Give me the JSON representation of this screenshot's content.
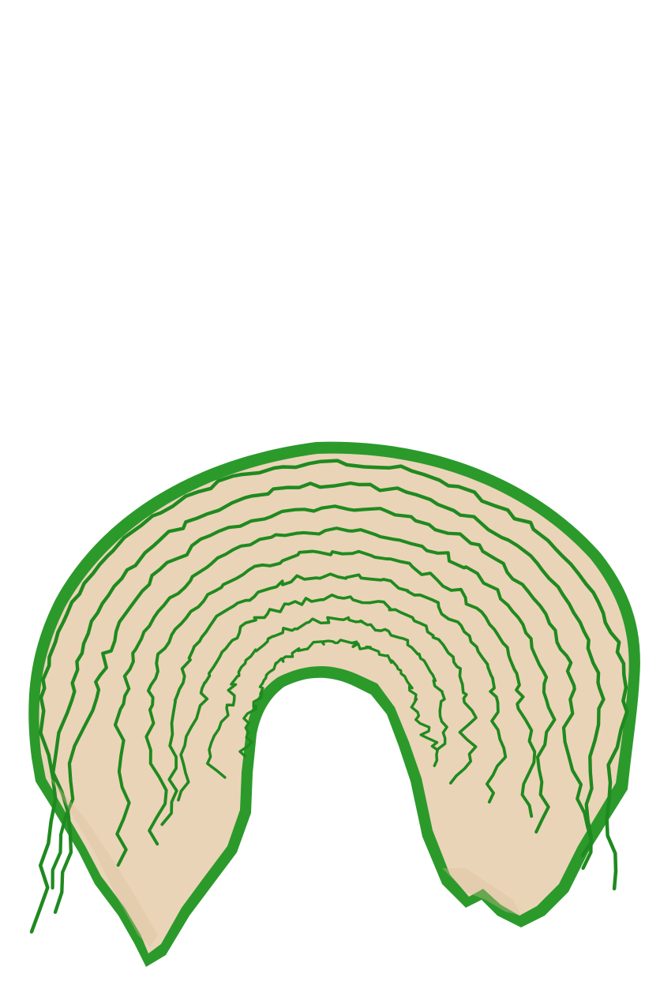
{
  "image": {
    "subject": "rug-icon",
    "colors": {
      "background": "#ffffff",
      "rug_fill": "#e9d2b4",
      "rug_shadow": "#d9bf9c",
      "outline_green": "#1f8a1f",
      "edge_green": "#2b9a2b"
    },
    "ring_count": 9
  }
}
